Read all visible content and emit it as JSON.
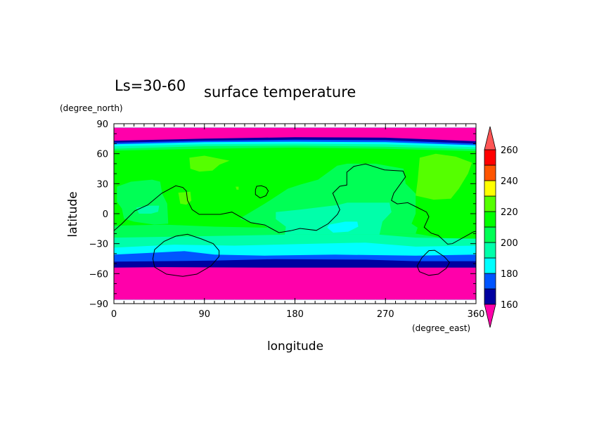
{
  "chart_data": {
    "type": "heatmap",
    "title": "surface temperature",
    "subtitle": "Ls=30-60",
    "xlabel": "longitude",
    "xunit": "(degree_east)",
    "ylabel": "latitude",
    "yunit": "(degree_north)",
    "xlim": [
      0,
      360
    ],
    "ylim": [
      -90,
      90
    ],
    "data_lat_extent": [
      -86,
      86
    ],
    "xticks": [
      "0",
      "90",
      "180",
      "270",
      "360"
    ],
    "yticks": [
      "90",
      "60",
      "30",
      "0",
      "-30",
      "-60",
      "-90"
    ],
    "colorbar": {
      "levels": [
        160,
        170,
        180,
        190,
        200,
        210,
        220,
        230,
        240,
        250,
        260
      ],
      "labels": [
        "260",
        "240",
        "220",
        "200",
        "180",
        "160"
      ],
      "colors": [
        "#0000a0",
        "#0055ff",
        "#00ffff",
        "#00ffaa",
        "#00ff55",
        "#00ff00",
        "#55ff00",
        "#ffff00",
        "#ff5500",
        "#ff0000"
      ],
      "under_color": "#ff00aa",
      "over_color": "#ff5555"
    },
    "base_level_color": "#00ff00",
    "filled_regions": [
      {
        "level": "200-210",
        "color": "#00ff55",
        "lonlat": [
          [
            0,
            -12
          ],
          [
            50,
            -11
          ],
          [
            100,
            -13
          ],
          [
            150,
            -14
          ],
          [
            200,
            -20
          ],
          [
            300,
            -20
          ],
          [
            330,
            -25
          ],
          [
            360,
            -25
          ],
          [
            360,
            -90
          ],
          [
            0,
            -90
          ]
        ]
      },
      {
        "level": "200-210",
        "color": "#00ff55",
        "lonlat": [
          [
            3,
            27
          ],
          [
            17,
            32
          ],
          [
            38,
            34
          ],
          [
            46,
            32
          ],
          [
            48,
            20
          ],
          [
            53,
            10
          ],
          [
            54,
            -10
          ],
          [
            40,
            -11
          ],
          [
            20,
            -8
          ],
          [
            10,
            -5
          ],
          [
            8,
            5
          ],
          [
            3,
            12
          ]
        ]
      },
      {
        "level": "200-210",
        "color": "#00ff55",
        "lonlat": [
          [
            125,
            -5
          ],
          [
            150,
            10
          ],
          [
            173,
            25
          ],
          [
            185,
            29
          ],
          [
            203,
            34
          ],
          [
            222,
            48
          ],
          [
            232,
            50
          ],
          [
            260,
            50
          ],
          [
            288,
            45
          ],
          [
            290,
            30
          ],
          [
            300,
            20
          ],
          [
            300,
            0
          ],
          [
            296,
            -10
          ],
          [
            302,
            -14
          ],
          [
            300,
            -20
          ],
          [
            160,
            -20
          ],
          [
            150,
            -12
          ],
          [
            140,
            -10
          ]
        ]
      },
      {
        "level": "190-200",
        "color": "#00ffaa",
        "lonlat": [
          [
            0,
            -24
          ],
          [
            60,
            -23
          ],
          [
            120,
            -22
          ],
          [
            170,
            -21
          ],
          [
            264,
            -21
          ],
          [
            300,
            -24
          ],
          [
            360,
            -25
          ],
          [
            360,
            -90
          ],
          [
            0,
            -90
          ]
        ]
      },
      {
        "level": "190-200",
        "color": "#00ffaa",
        "lonlat": [
          [
            161,
            1.6
          ],
          [
            185,
            4
          ],
          [
            223,
            8.7
          ],
          [
            232,
            11
          ],
          [
            274,
            11
          ],
          [
            276,
            1.6
          ],
          [
            267,
            -7.8
          ],
          [
            264,
            -21
          ],
          [
            170,
            -21
          ],
          [
            171,
            -13
          ],
          [
            161,
            -5.5
          ]
        ]
      },
      {
        "level": "190-200",
        "color": "#00ffaa",
        "lonlat": [
          [
            22,
            6
          ],
          [
            35,
            8
          ],
          [
            45,
            8
          ],
          [
            44,
            2
          ],
          [
            37,
            0
          ],
          [
            25,
            0
          ]
        ]
      },
      {
        "level": "180-190",
        "color": "#00ffff",
        "lonlat": [
          [
            214,
            -11
          ],
          [
            230,
            -8
          ],
          [
            242,
            -8
          ],
          [
            243,
            -13
          ],
          [
            233,
            -18
          ],
          [
            218,
            -19
          ],
          [
            212,
            -14
          ]
        ]
      },
      {
        "level": "180-190",
        "color": "#00ffff",
        "lonlat": [
          [
            0,
            -34
          ],
          [
            60,
            -31
          ],
          [
            120,
            -32
          ],
          [
            200,
            -30
          ],
          [
            250,
            -29
          ],
          [
            300,
            -33
          ],
          [
            360,
            -32
          ],
          [
            360,
            -90
          ],
          [
            0,
            -90
          ]
        ]
      },
      {
        "level": "170-180",
        "color": "#0055ff",
        "lonlat": [
          [
            0,
            -41
          ],
          [
            40,
            -39
          ],
          [
            70,
            -37.5
          ],
          [
            100,
            -41
          ],
          [
            150,
            -42
          ],
          [
            220,
            -41
          ],
          [
            300,
            -42
          ],
          [
            360,
            -41
          ],
          [
            360,
            -90
          ],
          [
            0,
            -90
          ]
        ]
      },
      {
        "level": "160-170",
        "color": "#0000a0",
        "lonlat": [
          [
            0,
            -48
          ],
          [
            100,
            -47
          ],
          [
            160,
            -45.5
          ],
          [
            250,
            -46
          ],
          [
            300,
            -47.5
          ],
          [
            360,
            -47.5
          ],
          [
            360,
            -90
          ],
          [
            0,
            -90
          ]
        ]
      },
      {
        "level": "<160",
        "color": "#ff00aa",
        "lonlat": [
          [
            0,
            -54
          ],
          [
            50,
            -53.5
          ],
          [
            150,
            -54
          ],
          [
            360,
            -54
          ],
          [
            360,
            -90
          ],
          [
            0,
            -90
          ]
        ]
      },
      {
        "level": "200-210",
        "color": "#00ff55",
        "lonlat": [
          [
            0,
            63
          ],
          [
            90,
            65
          ],
          [
            180,
            66
          ],
          [
            270,
            65
          ],
          [
            360,
            62.5
          ],
          [
            360,
            90
          ],
          [
            0,
            90
          ]
        ]
      },
      {
        "level": "190-200",
        "color": "#00ffaa",
        "lonlat": [
          [
            0,
            65
          ],
          [
            90,
            67.5
          ],
          [
            180,
            68
          ],
          [
            270,
            67
          ],
          [
            360,
            64.5
          ],
          [
            360,
            90
          ],
          [
            0,
            90
          ]
        ]
      },
      {
        "level": "180-190",
        "color": "#00ffff",
        "lonlat": [
          [
            0,
            67.5
          ],
          [
            90,
            69.5
          ],
          [
            180,
            70
          ],
          [
            270,
            69.5
          ],
          [
            360,
            66.5
          ],
          [
            360,
            90
          ],
          [
            0,
            90
          ]
        ]
      },
      {
        "level": "170-180",
        "color": "#0055ff",
        "lonlat": [
          [
            0,
            69.5
          ],
          [
            90,
            71.5
          ],
          [
            180,
            72
          ],
          [
            270,
            71.5
          ],
          [
            360,
            68.5
          ],
          [
            360,
            90
          ],
          [
            0,
            90
          ]
        ]
      },
      {
        "level": "160-170",
        "color": "#0000a0",
        "lonlat": [
          [
            0,
            71
          ],
          [
            90,
            73
          ],
          [
            180,
            74
          ],
          [
            270,
            73.5
          ],
          [
            360,
            70
          ],
          [
            360,
            90
          ],
          [
            0,
            90
          ]
        ]
      },
      {
        "level": "<160",
        "color": "#ff00aa",
        "lonlat": [
          [
            0,
            73
          ],
          [
            90,
            75
          ],
          [
            180,
            76.5
          ],
          [
            270,
            76
          ],
          [
            360,
            72.5
          ],
          [
            360,
            90
          ],
          [
            0,
            90
          ]
        ]
      },
      {
        "level": "220-230",
        "color": "#55ff00",
        "lonlat": [
          [
            75,
            56
          ],
          [
            90,
            58
          ],
          [
            115,
            53
          ],
          [
            105,
            49
          ],
          [
            98,
            43
          ],
          [
            85,
            42
          ],
          [
            76,
            45
          ]
        ]
      },
      {
        "level": "220-230",
        "color": "#55ff00",
        "lonlat": [
          [
            304,
            56
          ],
          [
            320,
            60
          ],
          [
            340,
            57
          ],
          [
            356,
            51
          ],
          [
            352,
            40
          ],
          [
            343,
            25
          ],
          [
            335,
            15
          ],
          [
            318,
            14
          ],
          [
            300,
            18
          ],
          [
            302,
            33
          ]
        ]
      },
      {
        "level": "220-230",
        "color": "#55ff00",
        "lonlat": [
          [
            64,
            21
          ],
          [
            76,
            22
          ],
          [
            77,
            13
          ],
          [
            72,
            9
          ],
          [
            66,
            10
          ]
        ]
      },
      {
        "level": "220-230",
        "color": "#55ff00",
        "lonlat": [
          [
            121,
            27
          ],
          [
            124,
            27
          ],
          [
            124,
            24
          ],
          [
            122,
            24
          ]
        ]
      }
    ],
    "contour_lines": [
      {
        "closed": false,
        "lonlat": [
          [
            0,
            -17.1
          ],
          [
            7.9,
            -10.1
          ],
          [
            20.7,
            2.8
          ],
          [
            33.6,
            8.7
          ],
          [
            47.5,
            20.4
          ],
          [
            61.5,
            27.9
          ],
          [
            68.5,
            26.2
          ],
          [
            72,
            22.7
          ],
          [
            73.2,
            13.3
          ],
          [
            77.8,
            4
          ],
          [
            84.8,
            -0.7
          ],
          [
            105.8,
            -0.7
          ],
          [
            117.4,
            1.6
          ],
          [
            136,
            -9
          ],
          [
            150,
            -11.3
          ],
          [
            164,
            -19
          ],
          [
            175.7,
            -17.1
          ],
          [
            185,
            -14.8
          ],
          [
            201.3,
            -16.7
          ],
          [
            213,
            -10.1
          ],
          [
            222.3,
            -0.7
          ],
          [
            224.6,
            4
          ],
          [
            217.6,
            20.4
          ],
          [
            224.6,
            27.4
          ],
          [
            231.6,
            28.6
          ],
          [
            231.6,
            41.5
          ],
          [
            238.6,
            47.3
          ],
          [
            250.2,
            49.7
          ],
          [
            269,
            43.8
          ],
          [
            287.5,
            42.6
          ],
          [
            289.9,
            36.8
          ],
          [
            278.2,
            20.4
          ],
          [
            275.9,
            13.3
          ],
          [
            281.7,
            9.8
          ],
          [
            292.2,
            11
          ],
          [
            301.5,
            6.3
          ],
          [
            310.8,
            1.6
          ],
          [
            313.2,
            -3.1
          ],
          [
            308.5,
            -13.6
          ],
          [
            315.5,
            -19.5
          ],
          [
            322.5,
            -21.8
          ],
          [
            331.8,
            -30.5
          ],
          [
            336.5,
            -30
          ],
          [
            357.4,
            -18.3
          ],
          [
            360,
            -17.6
          ]
        ]
      },
      {
        "closed": true,
        "lonlat": [
          [
            142,
            27.4
          ],
          [
            146.6,
            27.9
          ],
          [
            151.2,
            26.2
          ],
          [
            153.5,
            22.7
          ],
          [
            151.2,
            18
          ],
          [
            145.4,
            15.7
          ],
          [
            140.7,
            19.2
          ],
          [
            140.7,
            23.9
          ]
        ]
      },
      {
        "closed": true,
        "lonlat": [
          [
            40.5,
            -35.9
          ],
          [
            49.9,
            -27.7
          ],
          [
            61.5,
            -22.5
          ],
          [
            73.2,
            -20.6
          ],
          [
            87.1,
            -25.3
          ],
          [
            98.8,
            -30
          ],
          [
            104.6,
            -37
          ],
          [
            104.6,
            -42.9
          ],
          [
            96.5,
            -52.3
          ],
          [
            82.5,
            -60.5
          ],
          [
            68.5,
            -62.8
          ],
          [
            52.2,
            -60.5
          ],
          [
            40.5,
            -53.5
          ],
          [
            38.7,
            -45.3
          ]
        ]
      },
      {
        "closed": true,
        "lonlat": [
          [
            313.2,
            -37
          ],
          [
            319,
            -36.6
          ],
          [
            328.3,
            -42.9
          ],
          [
            333.7,
            -48.8
          ],
          [
            330.6,
            -54.6
          ],
          [
            322.5,
            -60.5
          ],
          [
            313.2,
            -61.7
          ],
          [
            303.8,
            -58.1
          ],
          [
            301.5,
            -52.3
          ],
          [
            306.2,
            -44.1
          ]
        ]
      }
    ]
  }
}
